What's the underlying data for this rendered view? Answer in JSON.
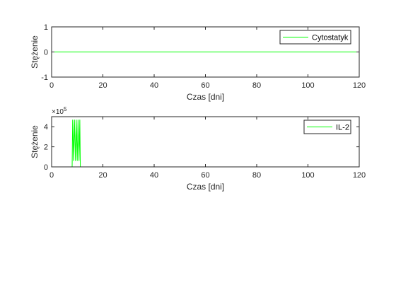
{
  "chart_data": [
    {
      "type": "line",
      "xlabel": "Czas [dni]",
      "ylabel": "Stężenie",
      "xlim": [
        0,
        120
      ],
      "ylim": [
        -1,
        1
      ],
      "xticks": [
        "0",
        "20",
        "40",
        "60",
        "80",
        "100",
        "120"
      ],
      "yticks": [
        "-1",
        "0",
        "1"
      ],
      "legend_position": "top-right",
      "series": [
        {
          "name": "Cytostatyk",
          "color": "#00ff00",
          "x": [
            0,
            120
          ],
          "y": [
            0,
            0
          ]
        }
      ]
    },
    {
      "type": "line",
      "xlabel": "Czas [dni]",
      "ylabel": "Stężenie",
      "xlim": [
        0,
        120
      ],
      "ylim": [
        0,
        500000
      ],
      "xticks": [
        "0",
        "20",
        "40",
        "60",
        "80",
        "100",
        "120"
      ],
      "yticks": [
        "0",
        "2",
        "4"
      ],
      "y_exponent_base": "×10",
      "y_exponent_power": "5",
      "legend_position": "top-right",
      "series": [
        {
          "name": "IL-2",
          "color": "#00ff00",
          "x": [
            0,
            8,
            8.2,
            8.6,
            8.9,
            9.3,
            9.6,
            10.0,
            10.3,
            10.7,
            11.0,
            11.2,
            120
          ],
          "y": [
            0,
            0,
            470000,
            60000,
            470000,
            60000,
            470000,
            60000,
            470000,
            60000,
            470000,
            0,
            0
          ]
        }
      ]
    }
  ]
}
